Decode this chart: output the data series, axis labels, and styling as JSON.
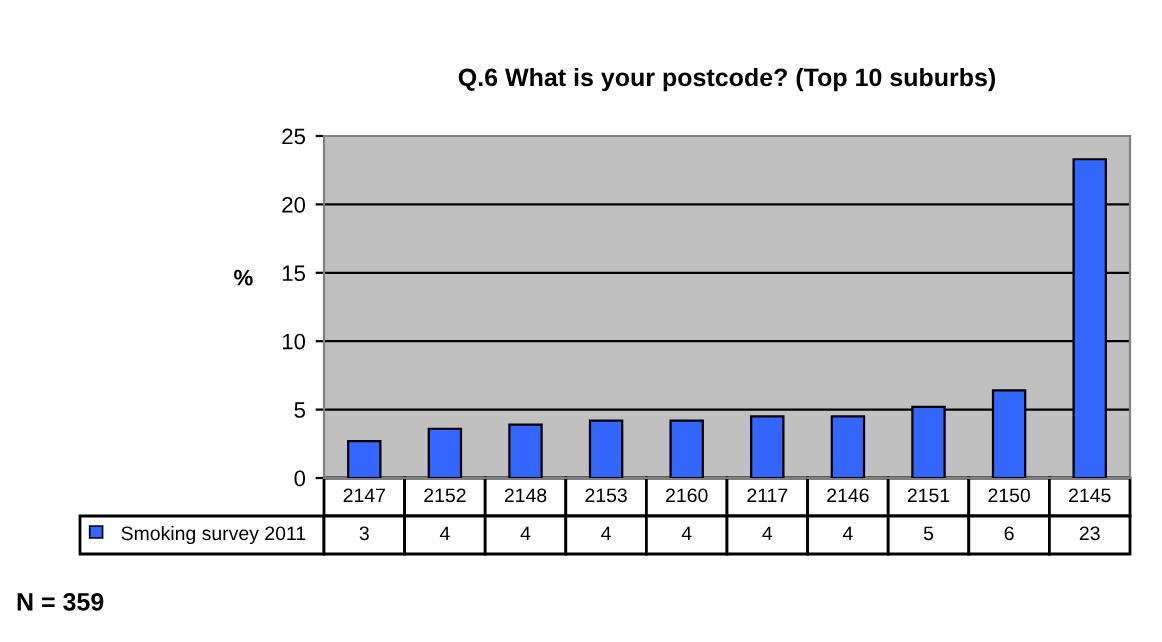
{
  "chart_data": {
    "type": "bar",
    "title": "Q.6 What is your postcode? (Top 10 suburbs)",
    "ylabel": "%",
    "annotations": [
      "N = 359"
    ],
    "categories": [
      "2147",
      "2152",
      "2148",
      "2153",
      "2160",
      "2117",
      "2146",
      "2151",
      "2150",
      "2145"
    ],
    "series": [
      {
        "name": "Smoking survey 2011",
        "color": "#3366ff",
        "values": [
          2.7,
          3.6,
          3.9,
          4.2,
          4.2,
          4.5,
          4.5,
          5.2,
          6.4,
          23.3
        ],
        "value_labels": [
          "3",
          "4",
          "4",
          "4",
          "4",
          "4",
          "4",
          "5",
          "6",
          "23"
        ]
      }
    ],
    "ylim": [
      0,
      25
    ],
    "yticks": [
      0,
      5,
      10,
      15,
      20,
      25
    ],
    "grid": "y",
    "legend": "bottom"
  }
}
